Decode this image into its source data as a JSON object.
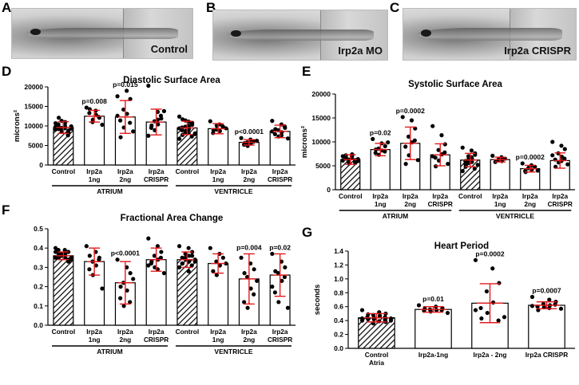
{
  "panels": {
    "A": {
      "letter": "A",
      "caption": "Control"
    },
    "B": {
      "letter": "B",
      "caption": "Irp2a MO"
    },
    "C": {
      "letter": "C",
      "caption": "Irp2a CRISPR"
    },
    "D": {
      "letter": "D"
    },
    "E": {
      "letter": "E"
    },
    "F": {
      "letter": "F"
    },
    "G": {
      "letter": "G"
    }
  },
  "colors": {
    "bar_fill": "#ffffff",
    "bar_stroke": "#000000",
    "error": "#e31a1c",
    "dot": "#000000",
    "hatch": "#000000"
  },
  "chart_data": [
    {
      "id": "D",
      "type": "bar",
      "title": "Diastolic Surface Area",
      "ylabel": "microns²",
      "ylim": [
        0,
        20000
      ],
      "yticks": [
        0,
        5000,
        10000,
        15000,
        20000
      ],
      "categories": [
        [
          "Control",
          ""
        ],
        [
          "Irp2a",
          "1ng"
        ],
        [
          "Irp2a",
          "2ng"
        ],
        [
          "Irp2a",
          "CRISPR"
        ],
        [
          "Control",
          ""
        ],
        [
          "Irp2a",
          "1ng"
        ],
        [
          "Irp2a",
          "2ng"
        ],
        [
          "Irp2a",
          "CRISPR"
        ]
      ],
      "values": [
        9600,
        12500,
        12300,
        11000,
        9500,
        9300,
        5800,
        8600
      ],
      "errors": [
        1500,
        1500,
        4200,
        3300,
        1700,
        1300,
        700,
        1600
      ],
      "hatched": [
        true,
        false,
        false,
        false,
        true,
        false,
        false,
        false
      ],
      "points": [
        [
          9100,
          10200,
          8800,
          11300,
          9700,
          10000,
          8500,
          9300,
          12100,
          7900,
          9800,
          10600,
          8300,
          9500,
          11000,
          10400,
          8700,
          9900,
          9200,
          7600,
          10700,
          9400
        ],
        [
          14700,
          13900,
          12100,
          11000,
          12800,
          13300,
          11600,
          10300,
          14300,
          12300
        ],
        [
          17600,
          19000,
          16900,
          14200,
          13100,
          11400,
          9600,
          8600,
          7100,
          10800,
          12600
        ],
        [
          20300,
          13600,
          11900,
          11200,
          10400,
          9500,
          8900,
          13800,
          10100,
          12600,
          7500,
          11600
        ],
        [
          12400,
          11100,
          10300,
          9800,
          9300,
          8900,
          8400,
          8100,
          7700,
          7300,
          6700,
          9100,
          10800,
          11400,
          10000,
          9600,
          8700,
          7900,
          11700,
          10500,
          9400,
          8200
        ],
        [
          11200,
          10400,
          9700,
          9100,
          8700,
          8200,
          10100,
          9400,
          8900,
          9900
        ],
        [
          6900,
          6500,
          6100,
          5800,
          5500,
          5200,
          4900,
          6200,
          5600,
          6000
        ],
        [
          11300,
          10400,
          9500,
          8900,
          8400,
          7900,
          7300,
          6800,
          9200,
          9900,
          8600,
          7600
        ]
      ],
      "annotations": [
        {
          "index": 1,
          "text": "p=0.008"
        },
        {
          "index": 2,
          "text": "p=0.015"
        },
        {
          "index": 6,
          "text": "p<0.0001"
        }
      ],
      "groups": [
        {
          "label": "ATRIUM",
          "from": 0,
          "to": 3
        },
        {
          "label": "VENTRICLE",
          "from": 4,
          "to": 7
        }
      ]
    },
    {
      "id": "E",
      "type": "bar",
      "title": "Systolic Surface Area",
      "ylabel": "microns²",
      "ylim": [
        0,
        20000
      ],
      "yticks": [
        0,
        5000,
        10000,
        15000,
        20000
      ],
      "categories": [
        [
          "Control",
          ""
        ],
        [
          "Irp2a",
          "1ng"
        ],
        [
          "Irp2a",
          "2ng"
        ],
        [
          "Irp2a",
          "CRISPR"
        ],
        [
          "Control",
          ""
        ],
        [
          "Irp2a",
          "1ng"
        ],
        [
          "Irp2a",
          "2ng"
        ],
        [
          "Irp2a",
          "CRISPR"
        ]
      ],
      "values": [
        6300,
        8400,
        9700,
        7300,
        6200,
        6300,
        4400,
        6100
      ],
      "errors": [
        1000,
        1300,
        3400,
        2300,
        1400,
        500,
        700,
        1600
      ],
      "hatched": [
        true,
        false,
        false,
        false,
        true,
        false,
        false,
        false
      ],
      "points": [
        [
          7000,
          6600,
          6200,
          5800,
          7400,
          6900,
          5500,
          6400,
          7200,
          5900,
          6100,
          6700,
          5600,
          6300,
          7100,
          6500,
          5700,
          6000,
          6800
        ],
        [
          10600,
          9700,
          9100,
          8600,
          8200,
          7700,
          7300,
          9900,
          8400,
          8000
        ],
        [
          15200,
          14500,
          12800,
          11100,
          9900,
          9000,
          7200,
          6200,
          5400,
          10300
        ],
        [
          13300,
          11400,
          9500,
          8300,
          7400,
          6700,
          6100,
          5400,
          4900,
          7800,
          7000
        ],
        [
          8800,
          8200,
          7600,
          7000,
          6500,
          6000,
          5600,
          5200,
          4800,
          4400,
          3900,
          6800,
          7300,
          6200,
          5800,
          5400,
          6600
        ],
        [
          7100,
          6800,
          6500,
          6200,
          6000,
          5800,
          6400
        ],
        [
          5500,
          5100,
          4800,
          4500,
          4200,
          3900,
          4600,
          4000,
          3700
        ],
        [
          10000,
          9200,
          8500,
          7600,
          6900,
          6300,
          5700,
          5300,
          4800,
          6500,
          7200,
          6000
        ]
      ],
      "annotations": [
        {
          "index": 1,
          "text": "p=0.02"
        },
        {
          "index": 2,
          "text": "p=0.0002"
        },
        {
          "index": 6,
          "text": "p=0.0002"
        }
      ],
      "groups": [
        {
          "label": "ATRIUM",
          "from": 0,
          "to": 3
        },
        {
          "label": "VENTRICLE",
          "from": 4,
          "to": 7
        }
      ]
    },
    {
      "id": "F",
      "type": "bar",
      "title": "Fractional Area Change",
      "ylabel": "",
      "ylim": [
        0,
        0.5
      ],
      "yticks": [
        0,
        0.1,
        0.2,
        0.3,
        0.4,
        0.5
      ],
      "categories": [
        [
          "Control",
          ""
        ],
        [
          "Irp2a",
          "1ng"
        ],
        [
          "Irp2a",
          "2ng"
        ],
        [
          "Irp2a",
          "CRISPR"
        ],
        [
          "Control",
          ""
        ],
        [
          "Irp2a",
          "1ng"
        ],
        [
          "Irp2a",
          "2ng"
        ],
        [
          "Irp2a",
          "CRISPR"
        ]
      ],
      "values": [
        0.36,
        0.33,
        0.22,
        0.34,
        0.34,
        0.32,
        0.24,
        0.26
      ],
      "errors": [
        0.02,
        0.07,
        0.11,
        0.06,
        0.04,
        0.05,
        0.13,
        0.11
      ],
      "hatched": [
        true,
        false,
        false,
        false,
        true,
        false,
        false,
        false
      ],
      "points": [
        [
          0.4,
          0.39,
          0.38,
          0.37,
          0.37,
          0.36,
          0.36,
          0.35,
          0.35,
          0.34,
          0.38,
          0.36,
          0.33,
          0.37,
          0.35,
          0.39,
          0.36,
          0.34,
          0.37,
          0.38,
          0.35
        ],
        [
          0.41,
          0.38,
          0.35,
          0.33,
          0.31,
          0.29,
          0.26,
          0.19,
          0.36,
          0.34
        ],
        [
          0.34,
          0.3,
          0.27,
          0.22,
          0.18,
          0.14,
          0.1,
          0.24,
          0.2,
          0.12
        ],
        [
          0.45,
          0.41,
          0.38,
          0.36,
          0.34,
          0.32,
          0.3,
          0.27,
          0.33,
          0.35,
          0.31,
          0.29
        ],
        [
          0.41,
          0.4,
          0.38,
          0.37,
          0.36,
          0.35,
          0.34,
          0.33,
          0.32,
          0.31,
          0.3,
          0.28,
          0.36,
          0.35,
          0.33,
          0.32,
          0.37,
          0.34
        ],
        [
          0.4,
          0.37,
          0.35,
          0.33,
          0.31,
          0.28,
          0.26,
          0.32
        ],
        [
          0.35,
          0.32,
          0.29,
          0.25,
          0.19,
          0.12,
          0.09,
          0.23,
          0.27,
          0.16
        ],
        [
          0.37,
          0.33,
          0.3,
          0.27,
          0.23,
          0.17,
          0.12,
          0.09,
          0.28,
          0.25,
          0.2
        ]
      ],
      "annotations": [
        {
          "index": 2,
          "text": "p<0.0001"
        },
        {
          "index": 6,
          "text": "p=0.004"
        },
        {
          "index": 7,
          "text": "p=0.02"
        }
      ],
      "groups": [
        {
          "label": "ATRIUM",
          "from": 0,
          "to": 3
        },
        {
          "label": "VENTRICLE",
          "from": 4,
          "to": 7
        }
      ]
    },
    {
      "id": "G",
      "type": "bar",
      "title": "Heart Period",
      "ylabel": "seconds",
      "ylim": [
        0,
        1.4
      ],
      "yticks": [
        0.0,
        0.2,
        0.4,
        0.6,
        0.8,
        1.0,
        1.2,
        1.4
      ],
      "categories": [
        [
          "Control",
          "Atria"
        ],
        [
          "Irp2a-1ng",
          ""
        ],
        [
          "Irp2a - 2ng",
          ""
        ],
        [
          "Irp2a CRISPR",
          ""
        ]
      ],
      "values": [
        0.44,
        0.56,
        0.65,
        0.62
      ],
      "errors": [
        0.06,
        0.04,
        0.28,
        0.05
      ],
      "hatched": [
        true,
        false,
        false,
        false
      ],
      "points": [
        [
          0.55,
          0.52,
          0.5,
          0.48,
          0.46,
          0.45,
          0.44,
          0.43,
          0.42,
          0.41,
          0.4,
          0.39,
          0.38,
          0.36,
          0.47,
          0.44,
          0.42,
          0.4,
          0.49,
          0.45,
          0.43
        ],
        [
          0.62,
          0.6,
          0.58,
          0.56,
          0.55,
          0.54,
          0.53,
          0.51,
          0.57,
          0.55
        ],
        [
          1.27,
          1.15,
          0.94,
          0.82,
          0.66,
          0.58,
          0.51,
          0.45,
          0.43,
          0.4,
          0.55
        ],
        [
          0.74,
          0.7,
          0.67,
          0.64,
          0.62,
          0.6,
          0.59,
          0.57,
          0.55,
          0.63,
          0.61,
          0.58
        ]
      ],
      "annotations": [
        {
          "index": 1,
          "text": "p=0.01"
        },
        {
          "index": 2,
          "text": "p=0.0002"
        },
        {
          "index": 3,
          "text": "p=0.0007"
        }
      ],
      "groups": []
    }
  ]
}
